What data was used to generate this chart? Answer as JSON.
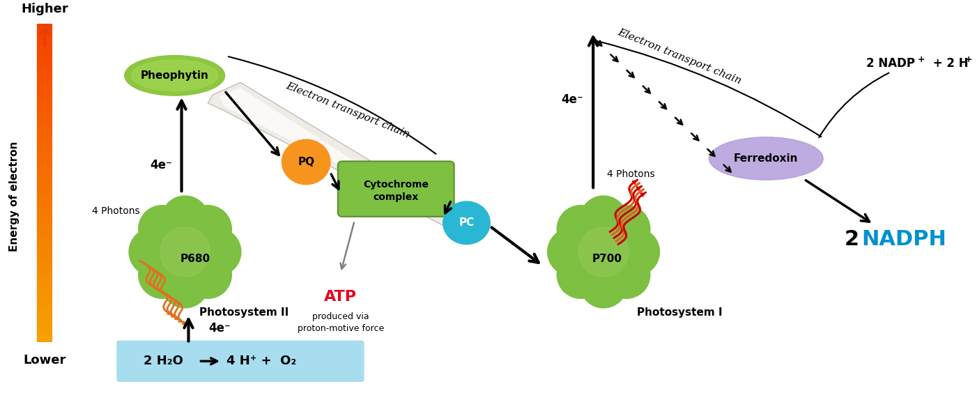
{
  "bg_color": "#ffffff",
  "energy_arrow_color_top": "#e84000",
  "energy_arrow_color_bottom": "#f5a020",
  "higher_text": "Higher",
  "lower_text": "Lower",
  "energy_label": "Energy of electron",
  "pheophytin_color": "#8dc63f",
  "pheophytin_text": "Pheophytin",
  "pq_color": "#f7941d",
  "pq_text": "PQ",
  "cytochrome_color": "#6ab04c",
  "cytochrome_text": "Cytochrome\ncomplex",
  "pc_color": "#29b7d3",
  "pc_text": "PC",
  "p680_text": "P680",
  "p700_text": "P700",
  "chloroplast_color": "#7dc042",
  "chloroplast_dark": "#4a9020",
  "ferredoxin_color": "#b39ddb",
  "ferredoxin_text": "Ferredoxin",
  "atp_text": "ATP",
  "atp_color": "#e8001c",
  "atp_subtext": "produced via\nproton-motive force",
  "nadph_text": "NADPH",
  "nadph_color": "#0090d0",
  "nadp_text": "2 NADP",
  "nadp_plus": "+",
  "nadp_rest": " +  2 H",
  "nadp_hplus": "+",
  "water_text": "2 H₂O",
  "oxygen_text": "4 H⁺ +  O₂",
  "water_box_color": "#a8ddf0",
  "ps2_label": "Photosystem II",
  "ps1_label": "Photosystem I",
  "etc_label1": "Electron transport chain",
  "etc_label2": "Electron transport chain",
  "photons_label": "4 Photons",
  "electrons_label": "4e⁻",
  "blade_color": "#e8e4de",
  "blade_edge": "#c8c0b5"
}
